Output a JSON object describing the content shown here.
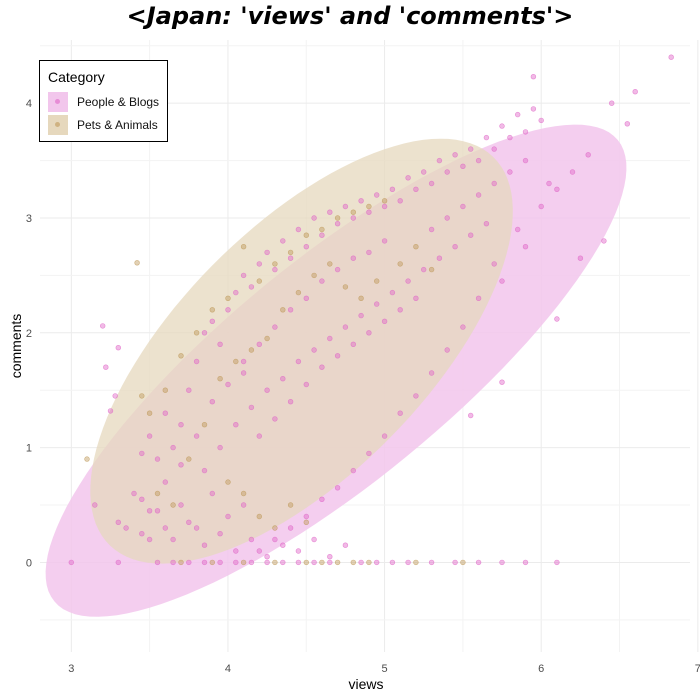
{
  "chart_data": {
    "type": "scatter",
    "title": "<Japan: 'views' and 'comments'>",
    "xlabel": "views",
    "ylabel": "comments",
    "xlim": [
      2.8,
      6.95
    ],
    "ylim": [
      -0.78,
      4.55
    ],
    "xticks": [
      3,
      4,
      5,
      6,
      7
    ],
    "yticks": [
      0,
      1,
      2,
      3,
      4
    ],
    "grid": true,
    "legend": {
      "title": "Category",
      "position": "top-left"
    },
    "series": [
      {
        "name": "People & Blogs",
        "color": "#e066c8",
        "fill_color": "#f2c6ec",
        "ellipse": {
          "center": [
            4.69,
            1.67
          ],
          "semi_major": 2.71,
          "semi_minor": 0.83,
          "angle_deg": 50
        },
        "points": [
          [
            6.83,
            4.4
          ],
          [
            6.6,
            4.1
          ],
          [
            5.95,
            4.23
          ],
          [
            6.45,
            4.0
          ],
          [
            6.55,
            3.82
          ],
          [
            6.3,
            3.55
          ],
          [
            6.2,
            3.4
          ],
          [
            6.1,
            3.25
          ],
          [
            6.4,
            2.8
          ],
          [
            6.1,
            2.12
          ],
          [
            6.25,
            2.65
          ],
          [
            5.75,
            1.57
          ],
          [
            5.55,
            1.28
          ],
          [
            3.2,
            2.06
          ],
          [
            3.3,
            1.87
          ],
          [
            3.22,
            1.7
          ],
          [
            3.28,
            1.45
          ],
          [
            3.25,
            1.32
          ],
          [
            3.15,
            0.5
          ],
          [
            3.3,
            0.35
          ],
          [
            3.4,
            0.6
          ],
          [
            3.45,
            0.55
          ],
          [
            3.5,
            0.45
          ],
          [
            3.6,
            0.7
          ],
          [
            3.5,
            0.2
          ],
          [
            3.6,
            0.3
          ],
          [
            3.55,
            0.9
          ],
          [
            3.65,
            1.0
          ],
          [
            3.7,
            1.2
          ],
          [
            3.75,
            1.5
          ],
          [
            3.8,
            1.75
          ],
          [
            3.85,
            2.0
          ],
          [
            3.9,
            2.1
          ],
          [
            3.95,
            1.9
          ],
          [
            4.0,
            2.2
          ],
          [
            4.05,
            2.35
          ],
          [
            4.1,
            2.5
          ],
          [
            4.15,
            2.4
          ],
          [
            4.2,
            2.6
          ],
          [
            4.25,
            2.7
          ],
          [
            4.3,
            2.55
          ],
          [
            4.35,
            2.8
          ],
          [
            4.4,
            2.65
          ],
          [
            4.45,
            2.9
          ],
          [
            4.5,
            2.75
          ],
          [
            4.55,
            3.0
          ],
          [
            4.6,
            2.85
          ],
          [
            4.65,
            3.05
          ],
          [
            4.7,
            2.95
          ],
          [
            4.75,
            3.1
          ],
          [
            4.8,
            3.0
          ],
          [
            4.85,
            3.15
          ],
          [
            4.9,
            3.05
          ],
          [
            4.95,
            3.2
          ],
          [
            5.0,
            3.1
          ],
          [
            5.05,
            3.25
          ],
          [
            5.1,
            3.15
          ],
          [
            5.15,
            3.35
          ],
          [
            5.2,
            3.25
          ],
          [
            5.25,
            3.4
          ],
          [
            5.3,
            3.3
          ],
          [
            5.35,
            3.5
          ],
          [
            5.4,
            3.4
          ],
          [
            5.45,
            3.55
          ],
          [
            5.5,
            3.45
          ],
          [
            5.55,
            3.6
          ],
          [
            5.6,
            3.5
          ],
          [
            5.65,
            3.7
          ],
          [
            5.7,
            3.6
          ],
          [
            5.75,
            3.8
          ],
          [
            5.8,
            3.7
          ],
          [
            5.85,
            3.9
          ],
          [
            5.9,
            3.75
          ],
          [
            5.95,
            3.95
          ],
          [
            6.0,
            3.85
          ],
          [
            6.05,
            3.3
          ],
          [
            5.85,
            2.9
          ],
          [
            5.7,
            2.6
          ],
          [
            5.6,
            2.3
          ],
          [
            5.5,
            2.05
          ],
          [
            5.4,
            1.85
          ],
          [
            5.3,
            1.65
          ],
          [
            5.2,
            1.45
          ],
          [
            5.1,
            1.3
          ],
          [
            5.0,
            1.1
          ],
          [
            4.9,
            0.95
          ],
          [
            4.8,
            0.8
          ],
          [
            4.7,
            0.65
          ],
          [
            4.6,
            0.55
          ],
          [
            4.5,
            0.4
          ],
          [
            4.4,
            0.3
          ],
          [
            4.3,
            0.2
          ],
          [
            4.2,
            0.1
          ],
          [
            4.1,
            0.5
          ],
          [
            4.0,
            0.4
          ],
          [
            3.9,
            0.6
          ],
          [
            3.8,
            0.3
          ],
          [
            3.7,
            0.5
          ],
          [
            3.85,
            0.8
          ],
          [
            3.95,
            1.0
          ],
          [
            4.05,
            1.2
          ],
          [
            4.15,
            1.35
          ],
          [
            4.25,
            1.5
          ],
          [
            4.35,
            1.6
          ],
          [
            4.45,
            1.75
          ],
          [
            4.55,
            1.85
          ],
          [
            4.65,
            1.95
          ],
          [
            4.75,
            2.05
          ],
          [
            4.85,
            2.15
          ],
          [
            4.95,
            2.25
          ],
          [
            5.05,
            2.35
          ],
          [
            5.15,
            2.45
          ],
          [
            5.25,
            2.55
          ],
          [
            5.35,
            2.65
          ],
          [
            5.45,
            2.75
          ],
          [
            5.55,
            2.85
          ],
          [
            5.65,
            2.95
          ],
          [
            4.2,
            1.1
          ],
          [
            4.3,
            1.25
          ],
          [
            4.4,
            1.4
          ],
          [
            4.5,
            1.55
          ],
          [
            4.6,
            1.7
          ],
          [
            4.7,
            1.8
          ],
          [
            4.8,
            1.9
          ],
          [
            4.9,
            2.0
          ],
          [
            5.0,
            2.1
          ],
          [
            5.1,
            2.2
          ],
          [
            5.2,
            2.3
          ],
          [
            4.1,
            1.75
          ],
          [
            4.2,
            1.9
          ],
          [
            4.3,
            2.05
          ],
          [
            4.4,
            2.2
          ],
          [
            4.5,
            2.3
          ],
          [
            4.6,
            2.45
          ],
          [
            4.7,
            2.55
          ],
          [
            4.8,
            2.65
          ],
          [
            4.9,
            2.7
          ],
          [
            5.0,
            2.8
          ],
          [
            3.9,
            1.4
          ],
          [
            4.0,
            1.55
          ],
          [
            4.1,
            1.65
          ],
          [
            3.8,
            1.1
          ],
          [
            3.7,
            0.85
          ],
          [
            3.6,
            1.3
          ],
          [
            3.5,
            1.1
          ],
          [
            3.45,
            0.95
          ],
          [
            5.3,
            2.9
          ],
          [
            5.4,
            3.0
          ],
          [
            5.5,
            3.1
          ],
          [
            5.6,
            3.2
          ],
          [
            5.7,
            3.3
          ],
          [
            5.8,
            3.4
          ],
          [
            5.9,
            3.5
          ],
          [
            6.0,
            3.1
          ],
          [
            5.9,
            2.75
          ],
          [
            5.75,
            2.45
          ],
          [
            3.35,
            0.3
          ],
          [
            3.45,
            0.25
          ],
          [
            3.55,
            0.45
          ],
          [
            3.65,
            0.2
          ],
          [
            3.75,
            0.35
          ],
          [
            3.85,
            0.15
          ],
          [
            3.95,
            0.25
          ],
          [
            4.05,
            0.1
          ],
          [
            4.15,
            0.2
          ],
          [
            4.25,
            0.05
          ],
          [
            4.35,
            0.15
          ],
          [
            4.45,
            0.1
          ],
          [
            4.55,
            0.2
          ],
          [
            4.65,
            0.05
          ],
          [
            4.75,
            0.15
          ],
          [
            3.55,
            0.0
          ],
          [
            3.65,
            0.0
          ],
          [
            3.75,
            0.0
          ],
          [
            3.85,
            0.0
          ],
          [
            3.95,
            0.0
          ],
          [
            4.05,
            0.0
          ],
          [
            4.15,
            0.0
          ],
          [
            4.25,
            0.0
          ],
          [
            4.35,
            0.0
          ],
          [
            4.45,
            0.0
          ],
          [
            4.55,
            0.0
          ],
          [
            4.65,
            0.0
          ],
          [
            4.85,
            0.0
          ],
          [
            4.95,
            0.0
          ],
          [
            5.05,
            0.0
          ],
          [
            5.15,
            0.0
          ],
          [
            5.3,
            0.0
          ],
          [
            5.45,
            0.0
          ],
          [
            5.6,
            0.0
          ],
          [
            5.75,
            0.0
          ],
          [
            5.9,
            0.0
          ],
          [
            6.1,
            0.0
          ],
          [
            3.3,
            0.0
          ],
          [
            3.0,
            0.0
          ]
        ]
      },
      {
        "name": "Pets & Animals",
        "color": "#bf9a5a",
        "fill_color": "#e6d8bd",
        "ellipse": {
          "center": [
            4.47,
            1.84
          ],
          "semi_major": 2.11,
          "semi_minor": 0.89,
          "angle_deg": 58
        },
        "points": [
          [
            3.1,
            0.9
          ],
          [
            3.42,
            2.61
          ],
          [
            4.1,
            2.75
          ],
          [
            3.6,
            1.5
          ],
          [
            3.7,
            1.8
          ],
          [
            3.8,
            2.0
          ],
          [
            3.9,
            2.2
          ],
          [
            4.0,
            2.3
          ],
          [
            4.2,
            2.45
          ],
          [
            4.3,
            2.6
          ],
          [
            4.4,
            2.7
          ],
          [
            4.5,
            2.85
          ],
          [
            4.6,
            2.9
          ],
          [
            4.7,
            3.0
          ],
          [
            4.8,
            3.05
          ],
          [
            4.9,
            3.1
          ],
          [
            5.0,
            3.15
          ],
          [
            4.35,
            2.2
          ],
          [
            4.45,
            2.35
          ],
          [
            4.55,
            2.5
          ],
          [
            4.65,
            2.6
          ],
          [
            4.75,
            2.4
          ],
          [
            4.85,
            2.3
          ],
          [
            3.95,
            1.6
          ],
          [
            4.05,
            1.75
          ],
          [
            4.15,
            1.85
          ],
          [
            4.25,
            1.95
          ],
          [
            3.85,
            1.2
          ],
          [
            3.75,
            0.9
          ],
          [
            4.0,
            0.7
          ],
          [
            4.1,
            0.6
          ],
          [
            4.2,
            0.4
          ],
          [
            4.3,
            0.3
          ],
          [
            4.4,
            0.5
          ],
          [
            4.5,
            0.35
          ],
          [
            3.65,
            0.5
          ],
          [
            3.55,
            0.6
          ],
          [
            3.7,
            0.0
          ],
          [
            3.9,
            0.0
          ],
          [
            4.1,
            0.0
          ],
          [
            4.3,
            0.0
          ],
          [
            4.5,
            0.0
          ],
          [
            4.6,
            0.0
          ],
          [
            4.7,
            0.0
          ],
          [
            4.8,
            0.0
          ],
          [
            4.9,
            0.0
          ],
          [
            5.2,
            0.0
          ],
          [
            5.5,
            0.0
          ],
          [
            3.45,
            1.45
          ],
          [
            3.5,
            1.3
          ],
          [
            5.1,
            2.6
          ],
          [
            5.2,
            2.75
          ],
          [
            5.3,
            2.55
          ],
          [
            4.95,
            2.45
          ]
        ]
      }
    ]
  }
}
